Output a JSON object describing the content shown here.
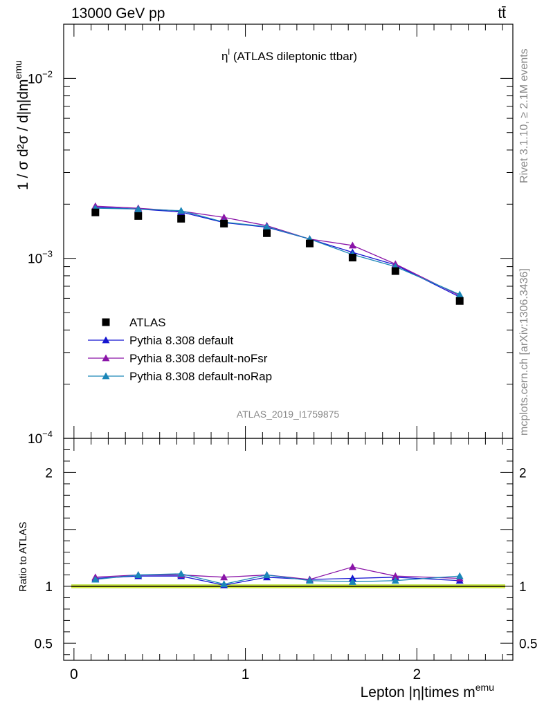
{
  "header": {
    "energy_label": "13000 GeV pp",
    "process_label": "tt̄"
  },
  "side": {
    "rivet_label": "Rivet 3.1.10, ≥ 2.1M events",
    "mcplots_label": "mcplots.cern.ch [arXiv:1306.3436]"
  },
  "chart_data": {
    "type": "line",
    "title": "η^l (ATLAS dileptonic ttbar)",
    "analysis_id": "ATLAS_2019_I1759875",
    "xlabel": "Lepton |η|times m^emu",
    "ylabel": "1 / σ  d²σ / d|η|dm^emu",
    "ratio_ylabel": "Ratio to ATLAS",
    "xlim": [
      -0.06,
      2.56
    ],
    "ylim": [
      0.0001,
      0.02
    ],
    "yscale": "log",
    "ratio_ylim": [
      0.35,
      2.3
    ],
    "x_ticks": [
      "0",
      "1",
      "2"
    ],
    "y_tick_labels": [
      {
        "base": "10",
        "exp": "−2",
        "value": 0.01
      },
      {
        "base": "10",
        "exp": "−3",
        "value": 0.001
      },
      {
        "base": "10",
        "exp": "−4",
        "value": 0.0001
      }
    ],
    "ratio_ticks": [
      "2",
      "1",
      "0.5"
    ],
    "x": [
      0.125,
      0.375,
      0.625,
      0.875,
      1.125,
      1.375,
      1.625,
      1.875,
      2.25
    ],
    "data": {
      "name": "ATLAS",
      "values": [
        0.0018,
        0.00172,
        0.00166,
        0.00156,
        0.00138,
        0.00121,
        0.00101,
        0.00085,
        0.00058
      ]
    },
    "series": [
      {
        "name": "Pythia 8.308 default",
        "color": "#1515d0",
        "values": [
          0.00192,
          0.00188,
          0.00181,
          0.00158,
          0.00149,
          0.00128,
          0.00108,
          0.00092,
          0.00061
        ],
        "ratio": [
          1.07,
          1.09,
          1.09,
          1.01,
          1.08,
          1.06,
          1.07,
          1.08,
          1.05
        ]
      },
      {
        "name": "Pythia 8.308 default-noFsr",
        "color": "#8a14a8",
        "values": [
          0.00195,
          0.0019,
          0.00183,
          0.00169,
          0.00152,
          0.00128,
          0.00118,
          0.00093,
          0.00062
        ],
        "ratio": [
          1.08,
          1.1,
          1.1,
          1.08,
          1.1,
          1.06,
          1.17,
          1.09,
          1.07
        ]
      },
      {
        "name": "Pythia 8.308 default-noRap",
        "color": "#1a86b8",
        "values": [
          0.0019,
          0.00188,
          0.00184,
          0.00159,
          0.0015,
          0.00128,
          0.00105,
          0.0009,
          0.00063
        ],
        "ratio": [
          1.06,
          1.1,
          1.11,
          1.02,
          1.1,
          1.05,
          1.04,
          1.05,
          1.09
        ]
      }
    ],
    "band_color": "#e6f53c",
    "band_edge_color": "#b4e032"
  }
}
